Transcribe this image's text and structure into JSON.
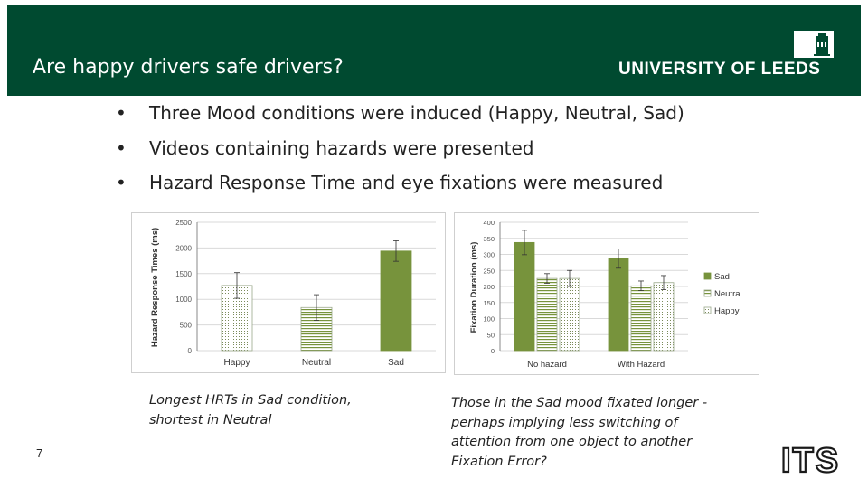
{
  "slide": {
    "title": "Are happy drivers safe drivers?",
    "university": "UNIVERSITY OF LEEDS",
    "bullet_glyph": "•",
    "bullets": [
      "Three Mood conditions were induced (Happy, Neutral, Sad)",
      "Videos containing hazards were presented",
      "Hazard Response Time and eye fixations were measured"
    ],
    "caption_left": [
      "Longest HRTs in Sad condition,",
      "shortest in Neutral"
    ],
    "caption_right": [
      "Those in the Sad mood fixated longer -",
      "perhaps implying less switching of",
      "attention from one object to another",
      "Fixation Error?"
    ],
    "page_number": "7",
    "its_logo": "ITS"
  },
  "colors": {
    "banner": "#004a30",
    "sad": "#77933c",
    "text": "#222222"
  },
  "chart_data": [
    {
      "type": "bar",
      "title": "",
      "xlabel": "",
      "ylabel": "Hazard Response Times (ms)",
      "ylim": [
        0,
        2500
      ],
      "yticks": [
        0,
        500,
        1000,
        1500,
        2000,
        2500
      ],
      "categories": [
        "Happy",
        "Neutral",
        "Sad"
      ],
      "values": [
        1270,
        840,
        1940
      ],
      "errors": [
        250,
        250,
        200
      ],
      "fills": [
        "dots",
        "hlines",
        "solid"
      ]
    },
    {
      "type": "bar",
      "title": "",
      "xlabel": "",
      "ylabel": "Fixation Duration (ms)",
      "ylim": [
        0,
        400
      ],
      "yticks": [
        0,
        50,
        100,
        150,
        200,
        250,
        300,
        350,
        400
      ],
      "categories": [
        "No hazard",
        "With Hazard"
      ],
      "series": [
        {
          "name": "Sad",
          "values": [
            337,
            287
          ],
          "errors": [
            38,
            30
          ],
          "fill": "solid"
        },
        {
          "name": "Neutral",
          "values": [
            225,
            202
          ],
          "errors": [
            15,
            15
          ],
          "fill": "hlines"
        },
        {
          "name": "Happy",
          "values": [
            225,
            212
          ],
          "errors": [
            25,
            22
          ],
          "fill": "dots"
        }
      ],
      "legend": "right"
    }
  ]
}
